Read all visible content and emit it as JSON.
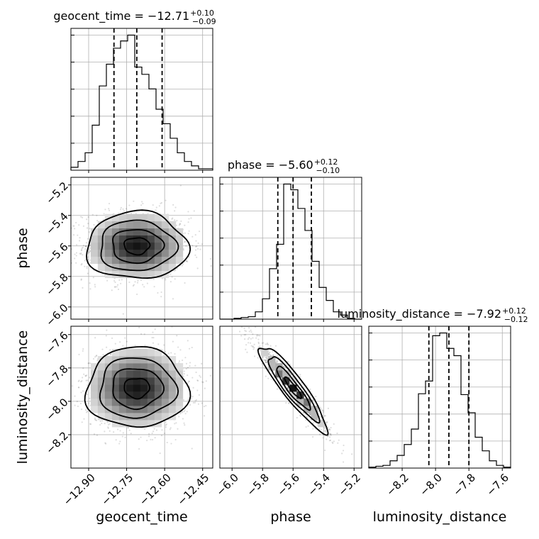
{
  "chart_data": {
    "type": "corner",
    "parameters": [
      {
        "name": "geocent_time",
        "title": "geocent_time = −12.71",
        "sup": "+0.10",
        "sub": "−0.09",
        "median": -12.71,
        "q16": -12.8,
        "q84": -12.61,
        "range": [
          -12.97,
          -12.41
        ],
        "ticks": [
          -12.9,
          -12.75,
          -12.6,
          -12.45
        ],
        "tick_labels": [
          "−12.90",
          "−12.75",
          "−12.60",
          "−12.45"
        ],
        "hist": {
          "edges_start": -12.97,
          "bin_width": 0.028,
          "counts": [
            2,
            6,
            12,
            31,
            58,
            73,
            84,
            89,
            93,
            71,
            66,
            56,
            42,
            32,
            22,
            12,
            6,
            3,
            1,
            1
          ]
        }
      },
      {
        "name": "phase",
        "title": "phase = −5.60",
        "sup": "+0.12",
        "sub": "−0.10",
        "median": -5.6,
        "q16": -5.7,
        "q84": -5.48,
        "range": [
          -6.08,
          -5.15
        ],
        "ticks": [
          -6.0,
          -5.8,
          -5.6,
          -5.4,
          -5.2
        ],
        "tick_labels": [
          "−6.0",
          "−5.8",
          "−5.6",
          "−5.4",
          "−5.2"
        ],
        "hist": {
          "edges_start": -6.08,
          "bin_width": 0.0465,
          "counts": [
            0,
            0,
            1,
            2,
            3,
            9,
            25,
            62,
            92,
            166,
            159,
            136,
            109,
            71,
            39,
            23,
            9,
            5,
            1,
            0
          ]
        }
      },
      {
        "name": "luminosity_distance",
        "title": "luminosity_distance = −7.92",
        "sup": "+0.12",
        "sub": "−0.12",
        "median": -7.92,
        "q16": -8.04,
        "q84": -7.8,
        "range": [
          -8.4,
          -7.55
        ],
        "ticks": [
          -8.2,
          -8.0,
          -7.8,
          -7.6
        ],
        "tick_labels": [
          "−8.2",
          "−8.0",
          "−7.8",
          "−7.6"
        ],
        "hist": {
          "edges_start": -8.4,
          "bin_width": 0.0425,
          "counts": [
            1,
            2,
            3,
            8,
            14,
            26,
            43,
            82,
            96,
            146,
            149,
            132,
            124,
            81,
            61,
            34,
            19,
            8,
            3,
            1
          ]
        }
      }
    ],
    "pairs": [
      {
        "x": "geocent_time",
        "y": "phase",
        "mean": [
          -12.71,
          -5.6
        ],
        "sd": [
          0.1,
          0.11
        ],
        "corr": 0.0,
        "y_ticks": [
          -5.2,
          -5.4,
          -5.6,
          -5.8,
          -6.0
        ],
        "y_tick_labels": [
          "−5.2",
          "−5.4",
          "−5.6",
          "−5.8",
          "−6.0"
        ]
      },
      {
        "x": "geocent_time",
        "y": "luminosity_distance",
        "mean": [
          -12.71,
          -7.92
        ],
        "sd": [
          0.1,
          0.12
        ],
        "corr": 0.0,
        "y_ticks": [
          -7.6,
          -7.8,
          -8.0,
          -8.2
        ],
        "y_tick_labels": [
          "−7.6",
          "−7.8",
          "−8.0",
          "−8.2"
        ]
      },
      {
        "x": "phase",
        "y": "luminosity_distance",
        "mean": [
          -5.6,
          -7.92
        ],
        "sd": [
          0.11,
          0.12
        ],
        "corr": -0.98
      }
    ],
    "contour_levels": [
      "0.5σ",
      "1σ",
      "1.5σ",
      "2σ"
    ],
    "grid": true,
    "xlabels": [
      "geocent_time",
      "phase",
      "luminosity_distance"
    ],
    "ylabels": [
      "phase",
      "luminosity_distance"
    ]
  }
}
